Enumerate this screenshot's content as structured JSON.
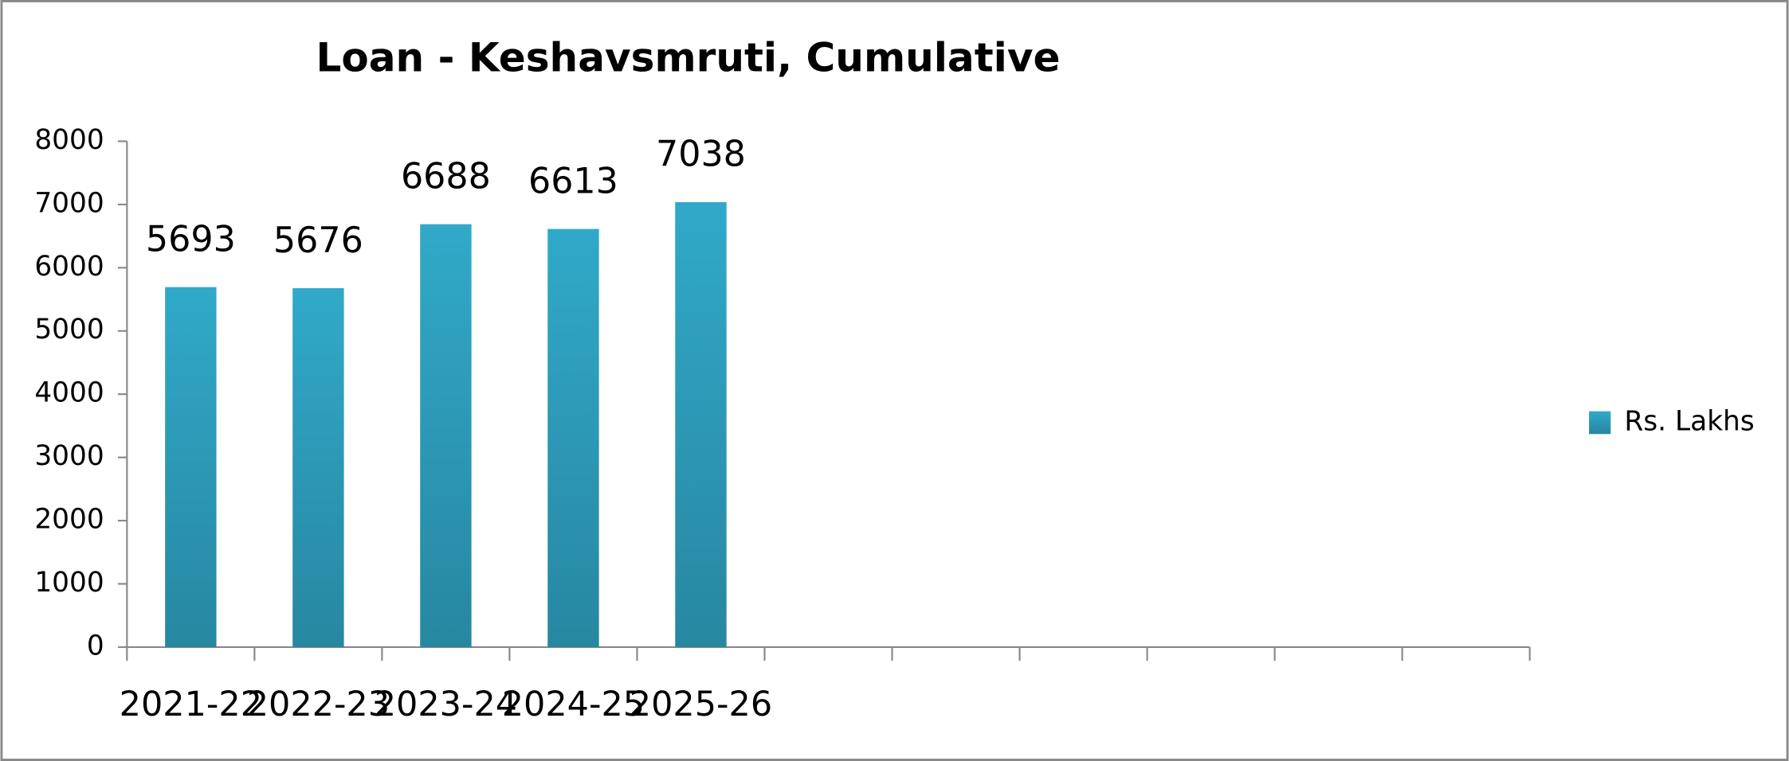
{
  "chart_data": {
    "type": "bar",
    "title": "Loan - Keshavsmruti, Cumulative",
    "categories": [
      "2021-22",
      "2022-23",
      "2023-24",
      "2024-25",
      "2025-26",
      null,
      null,
      null,
      null,
      null,
      null
    ],
    "series": [
      {
        "name": "Rs. Lakhs",
        "color": "#31a9c9",
        "values": [
          5693,
          5676,
          6688,
          6613,
          7038,
          null,
          null,
          null,
          null,
          null,
          null
        ]
      }
    ],
    "ylim": [
      0,
      8000
    ],
    "yticks": [
      0,
      1000,
      2000,
      3000,
      4000,
      5000,
      6000,
      7000,
      8000
    ],
    "grid": false,
    "legend": "right",
    "data_labels": true
  }
}
